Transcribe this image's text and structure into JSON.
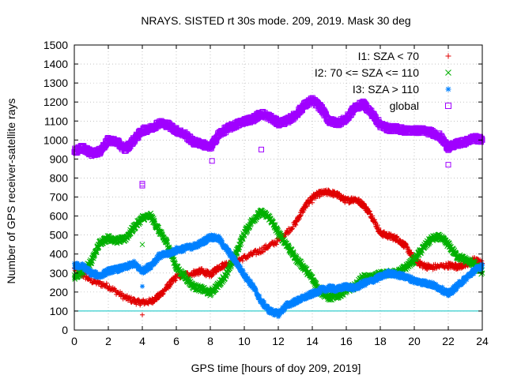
{
  "chart_data": {
    "type": "scatter",
    "title": "NRAYS. SISTED rt 30s mode. 209, 2019. Mask 30 deg",
    "xlabel": "GPS time [hours of doy 209, 2019]",
    "ylabel": "Number of GPS receiver-satellite rays",
    "xlim": [
      0,
      24
    ],
    "ylim": [
      0,
      1500
    ],
    "x_ticks": [
      "0",
      "2",
      "4",
      "6",
      "8",
      "10",
      "12",
      "14",
      "16",
      "18",
      "20",
      "22",
      "24"
    ],
    "y_ticks": [
      "0",
      "100",
      "200",
      "300",
      "400",
      "500",
      "600",
      "700",
      "800",
      "900",
      "1000",
      "1100",
      "1200",
      "1300",
      "1400",
      "1500"
    ],
    "grid": true,
    "legend_position": "top-right",
    "reference_line": {
      "y": 100,
      "color": "#00c0c0"
    },
    "series": [
      {
        "name": "I1: SZA < 70",
        "marker": "+",
        "color": "#e00000",
        "points": [
          [
            0,
            320
          ],
          [
            1,
            260
          ],
          [
            2,
            230
          ],
          [
            3,
            170
          ],
          [
            3.8,
            145
          ],
          [
            4.5,
            150
          ],
          [
            5,
            180
          ],
          [
            5.5,
            230
          ],
          [
            6,
            280
          ],
          [
            7,
            300
          ],
          [
            7.5,
            310
          ],
          [
            8,
            290
          ],
          [
            8.5,
            330
          ],
          [
            9,
            350
          ],
          [
            10,
            380
          ],
          [
            11,
            420
          ],
          [
            12,
            470
          ],
          [
            13,
            560
          ],
          [
            13.5,
            640
          ],
          [
            14,
            700
          ],
          [
            14.5,
            720
          ],
          [
            15,
            725
          ],
          [
            15.5,
            710
          ],
          [
            16,
            680
          ],
          [
            16.5,
            690
          ],
          [
            17,
            660
          ],
          [
            17.5,
            600
          ],
          [
            18,
            510
          ],
          [
            18.5,
            495
          ],
          [
            19,
            480
          ],
          [
            19.5,
            440
          ],
          [
            20,
            370
          ],
          [
            20.5,
            340
          ],
          [
            21,
            330
          ],
          [
            22,
            340
          ],
          [
            22.5,
            335
          ],
          [
            23,
            340
          ],
          [
            23.5,
            370
          ],
          [
            24,
            350
          ]
        ]
      },
      {
        "name": "I2: 70 <= SZA <= 110",
        "marker": "x",
        "color": "#00b000",
        "points": [
          [
            0,
            280
          ],
          [
            0.5,
            310
          ],
          [
            1,
            360
          ],
          [
            1.5,
            460
          ],
          [
            2,
            485
          ],
          [
            2.5,
            470
          ],
          [
            3,
            480
          ],
          [
            3.5,
            540
          ],
          [
            4,
            590
          ],
          [
            4.5,
            600
          ],
          [
            5,
            520
          ],
          [
            5.5,
            450
          ],
          [
            6,
            330
          ],
          [
            6.5,
            280
          ],
          [
            7,
            230
          ],
          [
            7.5,
            215
          ],
          [
            8,
            195
          ],
          [
            8.5,
            240
          ],
          [
            9,
            300
          ],
          [
            9.5,
            400
          ],
          [
            10,
            510
          ],
          [
            10.5,
            580
          ],
          [
            11,
            620
          ],
          [
            11.5,
            590
          ],
          [
            12,
            510
          ],
          [
            12.5,
            450
          ],
          [
            13,
            380
          ],
          [
            13.5,
            330
          ],
          [
            14,
            270
          ],
          [
            14.5,
            200
          ],
          [
            15,
            170
          ],
          [
            15.5,
            180
          ],
          [
            16,
            210
          ],
          [
            16.5,
            230
          ],
          [
            17,
            280
          ],
          [
            17.5,
            275
          ],
          [
            18,
            295
          ],
          [
            18.5,
            300
          ],
          [
            19,
            300
          ],
          [
            19.5,
            330
          ],
          [
            20,
            370
          ],
          [
            20.5,
            430
          ],
          [
            21,
            480
          ],
          [
            21.5,
            490
          ],
          [
            22,
            450
          ],
          [
            22.5,
            390
          ],
          [
            23,
            370
          ],
          [
            23.5,
            350
          ],
          [
            24,
            300
          ]
        ]
      },
      {
        "name": "I3: SZA > 110",
        "marker": "*",
        "color": "#0080ff",
        "points": [
          [
            0,
            340
          ],
          [
            0.5,
            335
          ],
          [
            1,
            300
          ],
          [
            1.5,
            285
          ],
          [
            2,
            310
          ],
          [
            2.5,
            320
          ],
          [
            3,
            330
          ],
          [
            3.5,
            350
          ],
          [
            4,
            310
          ],
          [
            4.5,
            340
          ],
          [
            5,
            390
          ],
          [
            5.5,
            400
          ],
          [
            6,
            420
          ],
          [
            6.5,
            430
          ],
          [
            7,
            440
          ],
          [
            7.5,
            460
          ],
          [
            8,
            490
          ],
          [
            8.5,
            480
          ],
          [
            9,
            420
          ],
          [
            9.5,
            360
          ],
          [
            10,
            290
          ],
          [
            10.5,
            230
          ],
          [
            11,
            150
          ],
          [
            11.5,
            100
          ],
          [
            12,
            85
          ],
          [
            12.5,
            130
          ],
          [
            13,
            150
          ],
          [
            13.5,
            170
          ],
          [
            14,
            190
          ],
          [
            14.5,
            210
          ],
          [
            15,
            220
          ],
          [
            15.5,
            215
          ],
          [
            16,
            230
          ],
          [
            16.5,
            220
          ],
          [
            17,
            245
          ],
          [
            17.5,
            260
          ],
          [
            18,
            280
          ],
          [
            18.5,
            300
          ],
          [
            19,
            290
          ],
          [
            19.5,
            280
          ],
          [
            20,
            260
          ],
          [
            20.5,
            250
          ],
          [
            21,
            240
          ],
          [
            21.5,
            220
          ],
          [
            22,
            190
          ],
          [
            22.5,
            230
          ],
          [
            23,
            270
          ],
          [
            23.5,
            310
          ],
          [
            24,
            340
          ]
        ]
      },
      {
        "name": "global",
        "marker": "square",
        "color": "#a000ff",
        "points": [
          [
            0,
            940
          ],
          [
            0.5,
            960
          ],
          [
            1,
            930
          ],
          [
            1.5,
            940
          ],
          [
            2,
            1000
          ],
          [
            2.5,
            990
          ],
          [
            3,
            950
          ],
          [
            3.5,
            1000
          ],
          [
            4,
            1050
          ],
          [
            4.5,
            1060
          ],
          [
            5,
            1090
          ],
          [
            5.5,
            1080
          ],
          [
            6,
            1050
          ],
          [
            6.5,
            1030
          ],
          [
            7,
            990
          ],
          [
            7.5,
            980
          ],
          [
            8,
            960
          ],
          [
            8.5,
            1030
          ],
          [
            9,
            1060
          ],
          [
            9.5,
            1080
          ],
          [
            10,
            1100
          ],
          [
            10.5,
            1110
          ],
          [
            11,
            1140
          ],
          [
            11.5,
            1120
          ],
          [
            12,
            1090
          ],
          [
            12.5,
            1100
          ],
          [
            13,
            1130
          ],
          [
            13.5,
            1180
          ],
          [
            14,
            1210
          ],
          [
            14.5,
            1170
          ],
          [
            15,
            1100
          ],
          [
            15.5,
            1090
          ],
          [
            16,
            1110
          ],
          [
            16.5,
            1170
          ],
          [
            17,
            1190
          ],
          [
            17.5,
            1140
          ],
          [
            18,
            1080
          ],
          [
            18.5,
            1060
          ],
          [
            19,
            1060
          ],
          [
            19.5,
            1050
          ],
          [
            20,
            1050
          ],
          [
            20.5,
            1050
          ],
          [
            21,
            1040
          ],
          [
            21.5,
            1020
          ],
          [
            22,
            960
          ],
          [
            22.5,
            980
          ],
          [
            23,
            990
          ],
          [
            23.5,
            1010
          ],
          [
            24,
            1000
          ]
        ]
      }
    ],
    "outliers": {
      "I1: SZA < 70": [
        [
          4,
          80
        ],
        [
          14,
          670
        ]
      ],
      "I2: 70 <= SZA <= 110": [
        [
          4,
          450
        ]
      ],
      "I3: SZA > 110": [
        [
          4,
          230
        ]
      ],
      "global": [
        [
          4,
          760
        ],
        [
          4,
          770
        ],
        [
          11,
          950
        ],
        [
          8.1,
          890
        ],
        [
          22,
          870
        ]
      ]
    }
  }
}
